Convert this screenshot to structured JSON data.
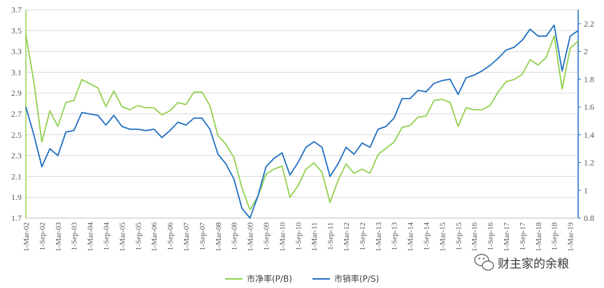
{
  "chart_data": {
    "type": "line",
    "title": "",
    "xlabel": "",
    "ylabel": "",
    "grid": "horizontal",
    "legend_position": "bottom-center",
    "x": [
      "1-Mar-02",
      "1-Jun-02",
      "1-Sep-02",
      "1-Dec-02",
      "1-Mar-03",
      "1-Jun-03",
      "1-Sep-03",
      "1-Dec-03",
      "1-Mar-04",
      "1-Jun-04",
      "1-Sep-04",
      "1-Dec-04",
      "1-Mar-05",
      "1-Jun-05",
      "1-Sep-05",
      "1-Dec-05",
      "1-Mar-06",
      "1-Jun-06",
      "1-Sep-06",
      "1-Dec-06",
      "1-Mar-07",
      "1-Jun-07",
      "1-Sep-07",
      "1-Dec-07",
      "1-Mar-08",
      "1-Jun-08",
      "1-Sep-08",
      "1-Dec-08",
      "1-Mar-09",
      "1-Jun-09",
      "1-Sep-09",
      "1-Dec-09",
      "1-Mar-10",
      "1-Jun-10",
      "1-Sep-10",
      "1-Dec-10",
      "1-Mar-11",
      "1-Jun-11",
      "1-Sep-11",
      "1-Dec-11",
      "1-Mar-12",
      "1-Jun-12",
      "1-Sep-12",
      "1-Dec-12",
      "1-Mar-13",
      "1-Jun-13",
      "1-Sep-13",
      "1-Dec-13",
      "1-Mar-14",
      "1-Jun-14",
      "1-Sep-14",
      "1-Dec-14",
      "1-Mar-15",
      "1-Jun-15",
      "1-Sep-15",
      "1-Dec-15",
      "1-Mar-16",
      "1-Jun-16",
      "1-Sep-16",
      "1-Dec-16",
      "1-Mar-17",
      "1-Jun-17",
      "1-Sep-17",
      "1-Dec-17",
      "1-Mar-18",
      "1-Jun-18",
      "1-Sep-18",
      "1-Dec-18",
      "1-Mar-19",
      "1-Jun-19"
    ],
    "x_tick_labels": [
      "1-Mar-02",
      "1-Sep-02",
      "1-Mar-03",
      "1-Sep-03",
      "1-Mar-04",
      "1-Sep-04",
      "1-Mar-05",
      "1-Sep-05",
      "1-Mar-06",
      "1-Sep-06",
      "1-Mar-07",
      "1-Sep-07",
      "1-Mar-08",
      "1-Sep-08",
      "1-Mar-09",
      "1-Sep-09",
      "1-Mar-10",
      "1-Sep-10",
      "1-Mar-11",
      "1-Sep-11",
      "1-Mar-12",
      "1-Sep-12",
      "1-Mar-13",
      "1-Sep-13",
      "1-Mar-14",
      "1-Sep-14",
      "1-Mar-15",
      "1-Sep-15",
      "1-Mar-16",
      "1-Sep-16",
      "1-Mar-17",
      "1-Sep-17",
      "1-Mar-18",
      "1-Sep-18",
      "1-Mar-19"
    ],
    "y_left": {
      "ticks": [
        "1.7",
        "1.9",
        "2.1",
        "2.3",
        "2.5",
        "2.7",
        "2.9",
        "3.1",
        "3.3",
        "3.5",
        "3.7"
      ],
      "ylim": [
        1.7,
        3.7
      ]
    },
    "y_right": {
      "ticks": [
        "0.8",
        "1",
        "1.2",
        "1.4",
        "1.6",
        "1.8",
        "2",
        "2.2"
      ],
      "ylim": [
        0.8,
        2.3
      ]
    },
    "series": [
      {
        "name": "市净率(P/B)",
        "axis": "left",
        "color": "#92D050",
        "values": [
          3.46,
          3.01,
          2.43,
          2.73,
          2.58,
          2.81,
          2.83,
          3.03,
          2.99,
          2.95,
          2.77,
          2.92,
          2.77,
          2.74,
          2.78,
          2.76,
          2.76,
          2.69,
          2.73,
          2.81,
          2.79,
          2.91,
          2.91,
          2.78,
          2.49,
          2.41,
          2.28,
          1.99,
          1.78,
          1.91,
          2.12,
          2.17,
          2.2,
          1.9,
          2.01,
          2.17,
          2.23,
          2.14,
          1.85,
          2.06,
          2.22,
          2.13,
          2.17,
          2.13,
          2.31,
          2.37,
          2.43,
          2.57,
          2.59,
          2.67,
          2.68,
          2.83,
          2.84,
          2.81,
          2.58,
          2.76,
          2.74,
          2.74,
          2.78,
          2.91,
          3.01,
          3.03,
          3.08,
          3.22,
          3.17,
          3.24,
          3.45,
          2.94,
          3.33,
          3.4
        ]
      },
      {
        "name": "市销率(P/S)",
        "axis": "right",
        "color": "#1F6FC1",
        "values": [
          1.6,
          1.4,
          1.17,
          1.3,
          1.25,
          1.42,
          1.43,
          1.56,
          1.55,
          1.54,
          1.47,
          1.54,
          1.46,
          1.44,
          1.44,
          1.43,
          1.44,
          1.38,
          1.43,
          1.49,
          1.47,
          1.52,
          1.52,
          1.44,
          1.26,
          1.19,
          1.08,
          0.87,
          0.8,
          0.96,
          1.17,
          1.23,
          1.27,
          1.11,
          1.2,
          1.31,
          1.35,
          1.31,
          1.1,
          1.19,
          1.31,
          1.26,
          1.34,
          1.31,
          1.44,
          1.46,
          1.52,
          1.66,
          1.66,
          1.72,
          1.71,
          1.77,
          1.79,
          1.8,
          1.69,
          1.81,
          1.83,
          1.86,
          1.9,
          1.95,
          2.01,
          2.03,
          2.08,
          2.16,
          2.11,
          2.11,
          2.19,
          1.86,
          2.11,
          2.15
        ]
      }
    ],
    "legend": [
      "市净率(P/B)",
      "市销率(P/S)"
    ]
  },
  "watermark": {
    "text": "财主家的余粮",
    "icon": "wechat-icon"
  }
}
